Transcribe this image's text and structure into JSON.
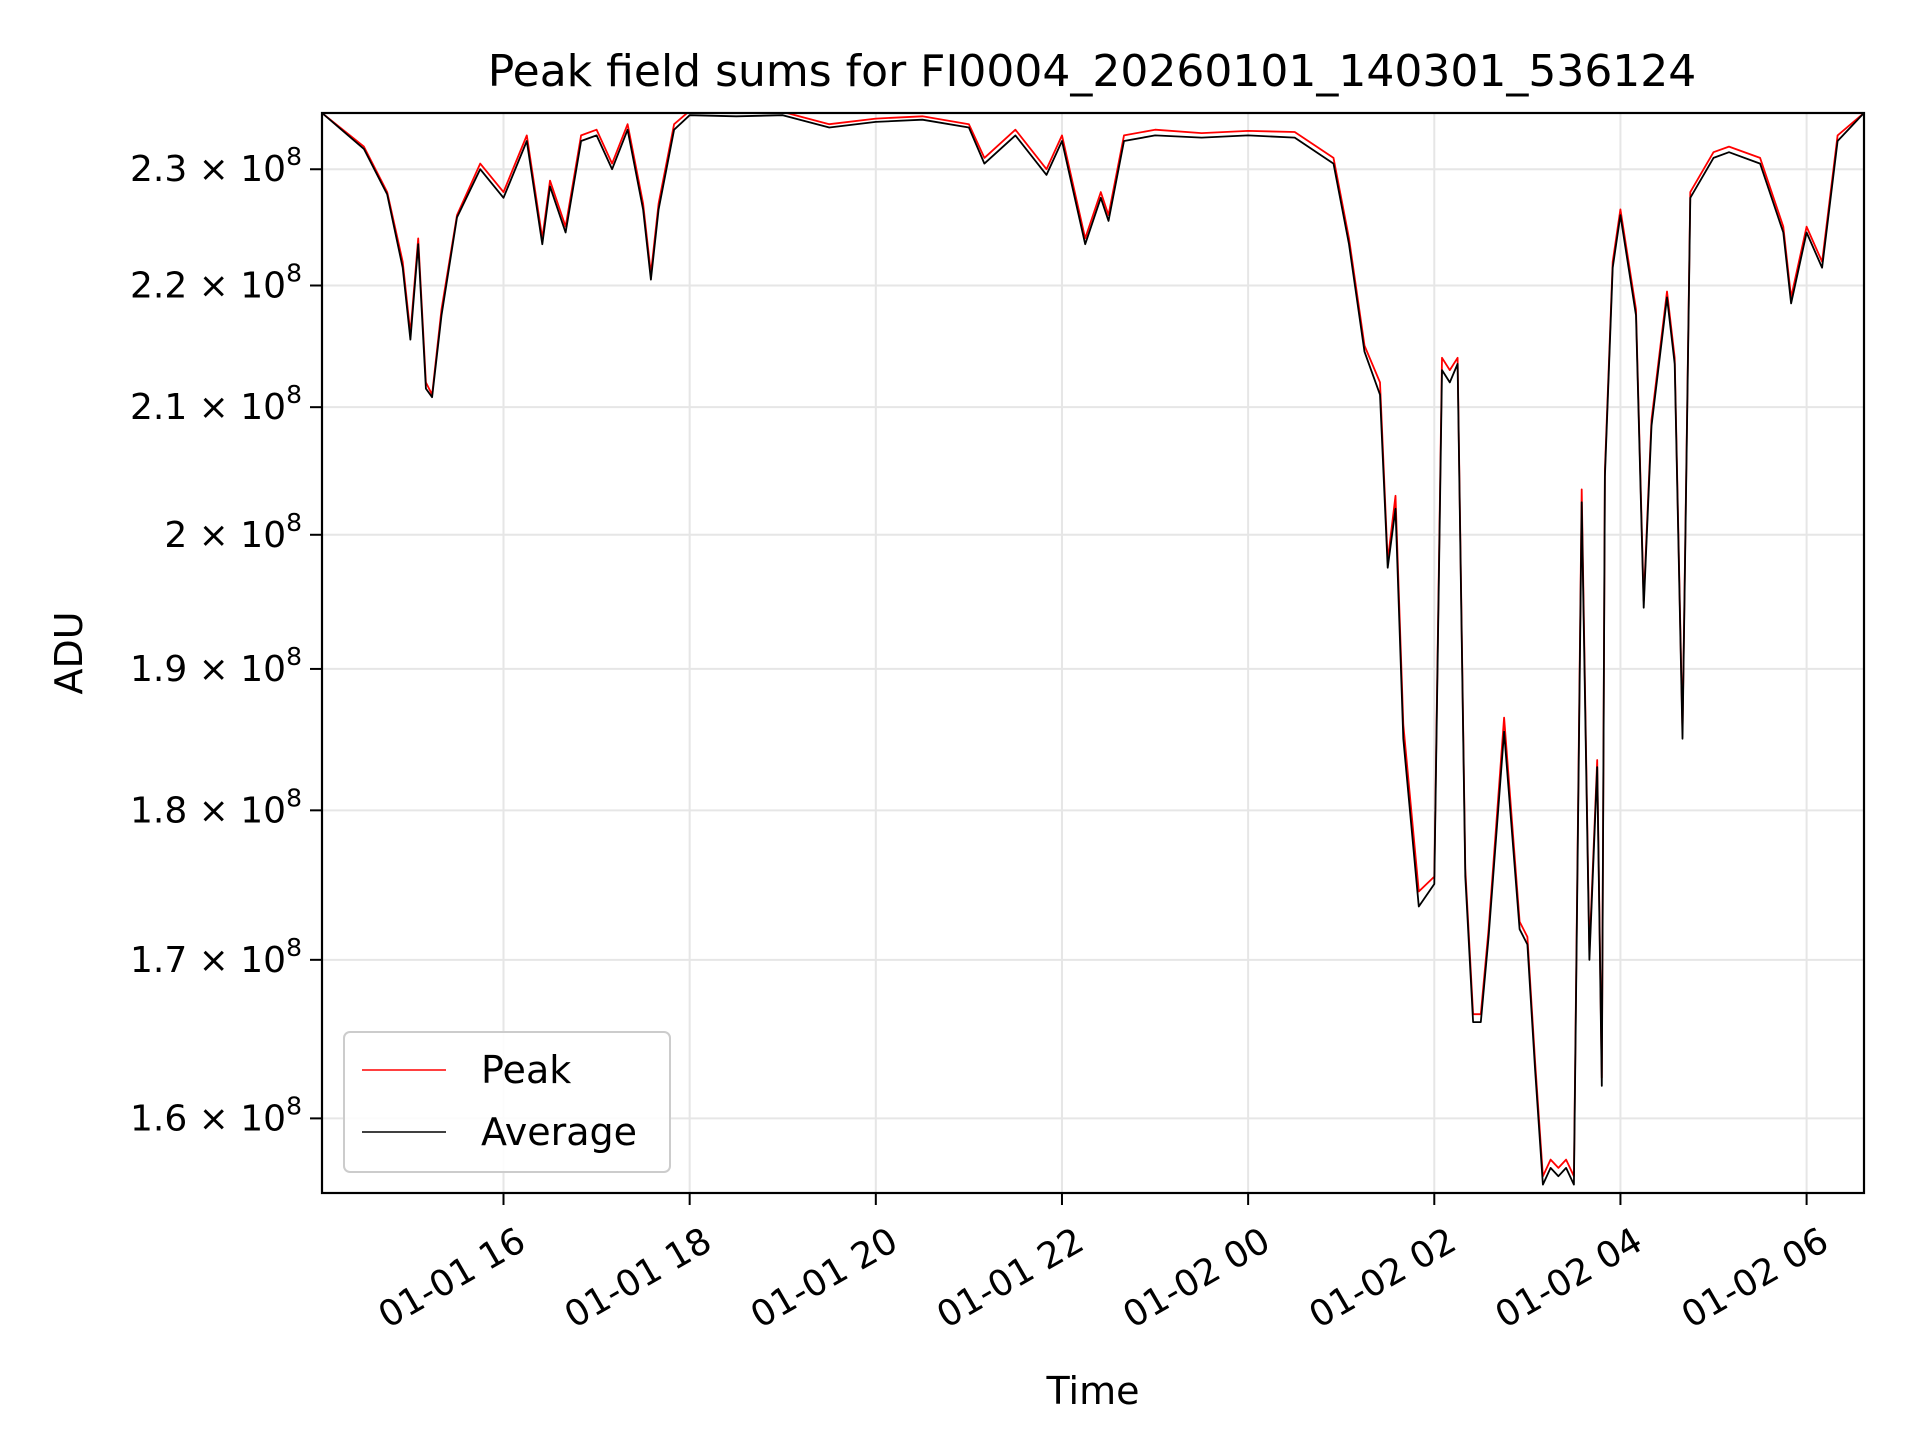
{
  "chart_data": {
    "type": "line",
    "title": "Peak field sums for FI0004_20260101_140301_536124",
    "xlabel": "Time",
    "ylabel": "ADU",
    "xlim": [
      "2026-01-01 14:03",
      "2026-01-02 06:37"
    ],
    "ylim": [
      155500000,
      235000000
    ],
    "yscale": "log",
    "grid": true,
    "legend": "lower-left",
    "x_ticks": [
      {
        "value": "2026-01-01 16:00",
        "label": "01-01 16"
      },
      {
        "value": "2026-01-01 18:00",
        "label": "01-01 18"
      },
      {
        "value": "2026-01-01 20:00",
        "label": "01-01 20"
      },
      {
        "value": "2026-01-01 22:00",
        "label": "01-01 22"
      },
      {
        "value": "2026-01-02 00:00",
        "label": "01-02 00"
      },
      {
        "value": "2026-01-02 02:00",
        "label": "01-02 02"
      },
      {
        "value": "2026-01-02 04:00",
        "label": "01-02 04"
      },
      {
        "value": "2026-01-02 06:00",
        "label": "01-02 06"
      }
    ],
    "y_ticks": [
      {
        "value": 160000000,
        "mantissa": "1.6 × 10",
        "exp": "8"
      },
      {
        "value": 170000000,
        "mantissa": "1.7 × 10",
        "exp": "8"
      },
      {
        "value": 180000000,
        "mantissa": "1.8 × 10",
        "exp": "8"
      },
      {
        "value": 190000000,
        "mantissa": "1.9 × 10",
        "exp": "8"
      },
      {
        "value": 200000000,
        "mantissa": "2 × 10",
        "exp": "8"
      },
      {
        "value": 210000000,
        "mantissa": "2.1 × 10",
        "exp": "8"
      },
      {
        "value": 220000000,
        "mantissa": "2.2 × 10",
        "exp": "8"
      },
      {
        "value": 230000000,
        "mantissa": "2.3 × 10",
        "exp": "8"
      }
    ],
    "series": [
      {
        "name": "Peak",
        "color": "#ff0000",
        "x": [
          "2026-01-01 14:03",
          "2026-01-01 14:30",
          "2026-01-01 14:45",
          "2026-01-01 14:55",
          "2026-01-01 15:00",
          "2026-01-01 15:05",
          "2026-01-01 15:10",
          "2026-01-01 15:14",
          "2026-01-01 15:20",
          "2026-01-01 15:30",
          "2026-01-01 15:45",
          "2026-01-01 16:00",
          "2026-01-01 16:15",
          "2026-01-01 16:25",
          "2026-01-01 16:30",
          "2026-01-01 16:40",
          "2026-01-01 16:50",
          "2026-01-01 17:00",
          "2026-01-01 17:10",
          "2026-01-01 17:20",
          "2026-01-01 17:30",
          "2026-01-01 17:35",
          "2026-01-01 17:40",
          "2026-01-01 17:50",
          "2026-01-01 18:00",
          "2026-01-01 18:30",
          "2026-01-01 19:00",
          "2026-01-01 19:30",
          "2026-01-01 20:00",
          "2026-01-01 20:30",
          "2026-01-01 21:00",
          "2026-01-01 21:10",
          "2026-01-01 21:30",
          "2026-01-01 21:50",
          "2026-01-01 22:00",
          "2026-01-01 22:15",
          "2026-01-01 22:25",
          "2026-01-01 22:30",
          "2026-01-01 22:40",
          "2026-01-01 23:00",
          "2026-01-01 23:30",
          "2026-01-02 00:00",
          "2026-01-02 00:30",
          "2026-01-02 00:55",
          "2026-01-02 01:05",
          "2026-01-02 01:15",
          "2026-01-02 01:25",
          "2026-01-02 01:30",
          "2026-01-02 01:35",
          "2026-01-02 01:40",
          "2026-01-02 01:50",
          "2026-01-02 02:00",
          "2026-01-02 02:05",
          "2026-01-02 02:10",
          "2026-01-02 02:15",
          "2026-01-02 02:20",
          "2026-01-02 02:25",
          "2026-01-02 02:30",
          "2026-01-02 02:35",
          "2026-01-02 02:45",
          "2026-01-02 02:55",
          "2026-01-02 03:00",
          "2026-01-02 03:05",
          "2026-01-02 03:10",
          "2026-01-02 03:15",
          "2026-01-02 03:20",
          "2026-01-02 03:25",
          "2026-01-02 03:30",
          "2026-01-02 03:35",
          "2026-01-02 03:40",
          "2026-01-02 03:45",
          "2026-01-02 03:48",
          "2026-01-02 03:50",
          "2026-01-02 03:55",
          "2026-01-02 04:00",
          "2026-01-02 04:10",
          "2026-01-02 04:15",
          "2026-01-02 04:20",
          "2026-01-02 04:30",
          "2026-01-02 04:35",
          "2026-01-02 04:40",
          "2026-01-02 04:45",
          "2026-01-02 05:00",
          "2026-01-02 05:10",
          "2026-01-02 05:30",
          "2026-01-02 05:45",
          "2026-01-02 05:50",
          "2026-01-02 06:00",
          "2026-01-02 06:10",
          "2026-01-02 06:20",
          "2026-01-02 06:37"
        ],
        "values": [
          235000000,
          232000000,
          228000000,
          222000000,
          216000000,
          224000000,
          212000000,
          211000000,
          218000000,
          226000000,
          230500000,
          228000000,
          233000000,
          224000000,
          229000000,
          225000000,
          233000000,
          233500000,
          230500000,
          234000000,
          227000000,
          221000000,
          227000000,
          234000000,
          235200000,
          235000000,
          235100000,
          234000000,
          234500000,
          234700000,
          234000000,
          231000000,
          233500000,
          230000000,
          233000000,
          224000000,
          228000000,
          226000000,
          233000000,
          233500000,
          233200000,
          233400000,
          233300000,
          231000000,
          224000000,
          215000000,
          212000000,
          198000000,
          203000000,
          186000000,
          174500000,
          175500000,
          214000000,
          213000000,
          214000000,
          176000000,
          166500000,
          166500000,
          172000000,
          186500000,
          172500000,
          171500000,
          163500000,
          156500000,
          157500000,
          157000000,
          157500000,
          156500000,
          203500000,
          170500000,
          183500000,
          162500000,
          205000000,
          222000000,
          226500000,
          218000000,
          195000000,
          209000000,
          219500000,
          214000000,
          185500000,
          228000000,
          231500000,
          232000000,
          231000000,
          225000000,
          219000000,
          225000000,
          222000000,
          233000000,
          235000000
        ]
      },
      {
        "name": "Average",
        "color": "#000000",
        "x": [
          "2026-01-01 14:03",
          "2026-01-01 14:30",
          "2026-01-01 14:45",
          "2026-01-01 14:55",
          "2026-01-01 15:00",
          "2026-01-01 15:05",
          "2026-01-01 15:10",
          "2026-01-01 15:14",
          "2026-01-01 15:20",
          "2026-01-01 15:30",
          "2026-01-01 15:45",
          "2026-01-01 16:00",
          "2026-01-01 16:15",
          "2026-01-01 16:25",
          "2026-01-01 16:30",
          "2026-01-01 16:40",
          "2026-01-01 16:50",
          "2026-01-01 17:00",
          "2026-01-01 17:10",
          "2026-01-01 17:20",
          "2026-01-01 17:30",
          "2026-01-01 17:35",
          "2026-01-01 17:40",
          "2026-01-01 17:50",
          "2026-01-01 18:00",
          "2026-01-01 18:30",
          "2026-01-01 19:00",
          "2026-01-01 19:30",
          "2026-01-01 20:00",
          "2026-01-01 20:30",
          "2026-01-01 21:00",
          "2026-01-01 21:10",
          "2026-01-01 21:30",
          "2026-01-01 21:50",
          "2026-01-01 22:00",
          "2026-01-01 22:15",
          "2026-01-01 22:25",
          "2026-01-01 22:30",
          "2026-01-01 22:40",
          "2026-01-01 23:00",
          "2026-01-01 23:30",
          "2026-01-02 00:00",
          "2026-01-02 00:30",
          "2026-01-02 00:55",
          "2026-01-02 01:05",
          "2026-01-02 01:15",
          "2026-01-02 01:25",
          "2026-01-02 01:30",
          "2026-01-02 01:35",
          "2026-01-02 01:40",
          "2026-01-02 01:50",
          "2026-01-02 02:00",
          "2026-01-02 02:05",
          "2026-01-02 02:10",
          "2026-01-02 02:15",
          "2026-01-02 02:20",
          "2026-01-02 02:25",
          "2026-01-02 02:30",
          "2026-01-02 02:35",
          "2026-01-02 02:45",
          "2026-01-02 02:55",
          "2026-01-02 03:00",
          "2026-01-02 03:05",
          "2026-01-02 03:10",
          "2026-01-02 03:15",
          "2026-01-02 03:20",
          "2026-01-02 03:25",
          "2026-01-02 03:30",
          "2026-01-02 03:35",
          "2026-01-02 03:40",
          "2026-01-02 03:45",
          "2026-01-02 03:48",
          "2026-01-02 03:50",
          "2026-01-02 03:55",
          "2026-01-02 04:00",
          "2026-01-02 04:10",
          "2026-01-02 04:15",
          "2026-01-02 04:20",
          "2026-01-02 04:30",
          "2026-01-02 04:35",
          "2026-01-02 04:40",
          "2026-01-02 04:45",
          "2026-01-02 05:00",
          "2026-01-02 05:10",
          "2026-01-02 05:30",
          "2026-01-02 05:45",
          "2026-01-02 05:50",
          "2026-01-02 06:00",
          "2026-01-02 06:10",
          "2026-01-02 06:20",
          "2026-01-02 06:37"
        ],
        "values": [
          235000000,
          231800000,
          227800000,
          221500000,
          215500000,
          223500000,
          211500000,
          210800000,
          217500000,
          225800000,
          230000000,
          227500000,
          232500000,
          223500000,
          228500000,
          224500000,
          232500000,
          233000000,
          230000000,
          233500000,
          226500000,
          220500000,
          226500000,
          233500000,
          234800000,
          234700000,
          234800000,
          233700000,
          234200000,
          234400000,
          233700000,
          230500000,
          233000000,
          229500000,
          232500000,
          223500000,
          227500000,
          225500000,
          232500000,
          233000000,
          232800000,
          233000000,
          232800000,
          230500000,
          223500000,
          214500000,
          211000000,
          197500000,
          202000000,
          185000000,
          173500000,
          175000000,
          213000000,
          212000000,
          213500000,
          175500000,
          166000000,
          166000000,
          171500000,
          185500000,
          172000000,
          171000000,
          163000000,
          156000000,
          157000000,
          156500000,
          157000000,
          156000000,
          202500000,
          170000000,
          183000000,
          162000000,
          204500000,
          221500000,
          226000000,
          217500000,
          194500000,
          208500000,
          219000000,
          213500000,
          185000000,
          227500000,
          231000000,
          231500000,
          230500000,
          224500000,
          218500000,
          224500000,
          221500000,
          232500000,
          235000000
        ]
      }
    ]
  }
}
